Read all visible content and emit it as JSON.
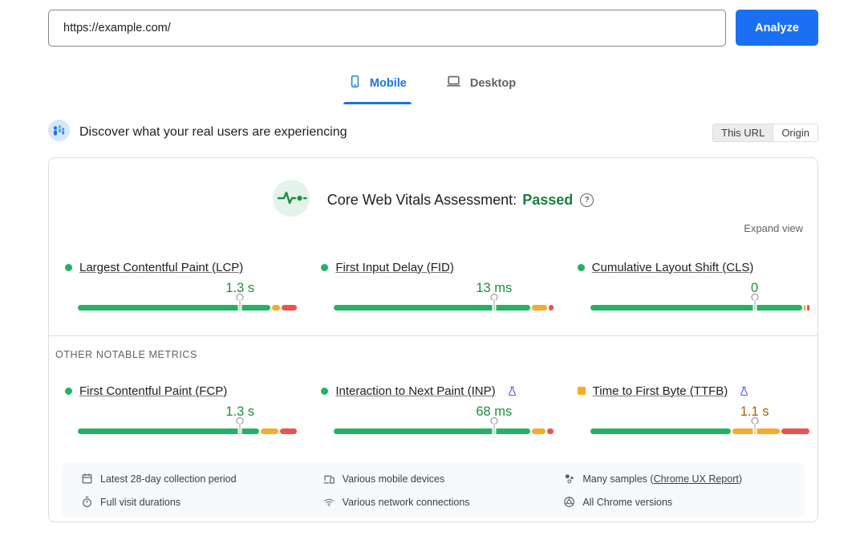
{
  "colors": {
    "accent_blue": "#1a73e8",
    "analyze_blue": "#1a6ff2",
    "good_green": "#23b263",
    "ni_orange": "#f7ab2a",
    "poor_red": "#ee524e",
    "value_green": "#1e8e3e",
    "value_orange": "#b06000",
    "passed_green": "#188038",
    "flask_blue": "#4356e0",
    "icon_gray": "#5f6368"
  },
  "url_bar": {
    "value": "https://example.com/",
    "analyze_button": "Analyze"
  },
  "tabs": [
    {
      "label": "Mobile",
      "active": true,
      "icon": "smartphone-icon"
    },
    {
      "label": "Desktop",
      "active": false,
      "icon": "laptop-icon"
    }
  ],
  "field_data_header": {
    "title": "Discover what your real users are experiencing",
    "scope_toggle": [
      {
        "label": "This URL",
        "selected": true
      },
      {
        "label": "Origin",
        "selected": false
      }
    ]
  },
  "assessment": {
    "title": "Core Web Vitals Assessment:",
    "status": "Passed",
    "help_glyph": "?",
    "expand_label": "Expand view"
  },
  "other_metrics_label": "OTHER NOTABLE METRICS",
  "core_web_vitals": [
    {
      "name": "Largest Contentful Paint (LCP)",
      "value": "1.3 s",
      "rating": "good",
      "marker_percent": 74,
      "distribution": {
        "good": 89,
        "needs_improvement": 4,
        "poor": 7
      },
      "experimental": false
    },
    {
      "name": "First Input Delay (FID)",
      "value": "13 ms",
      "rating": "good",
      "marker_percent": 73,
      "distribution": {
        "good": 91,
        "needs_improvement": 7,
        "poor": 2
      },
      "experimental": false
    },
    {
      "name": "Cumulative Layout Shift (CLS)",
      "value": "0",
      "rating": "good",
      "marker_percent": 75,
      "distribution": {
        "good": 98,
        "needs_improvement": 1,
        "poor": 1
      },
      "experimental": false
    }
  ],
  "other_metrics": [
    {
      "name": "First Contentful Paint (FCP)",
      "value": "1.3 s",
      "rating": "good",
      "marker_percent": 74,
      "distribution": {
        "good": 84,
        "needs_improvement": 8,
        "poor": 8
      },
      "experimental": false
    },
    {
      "name": "Interaction to Next Paint (INP)",
      "value": "68 ms",
      "rating": "good",
      "marker_percent": 73,
      "distribution": {
        "good": 91,
        "needs_improvement": 6,
        "poor": 3
      },
      "experimental": true
    },
    {
      "name": "Time to First Byte (TTFB)",
      "value": "1.1 s",
      "rating": "needs_improvement",
      "marker_percent": 75,
      "distribution": {
        "good": 65,
        "needs_improvement": 22,
        "poor": 13
      },
      "experimental": true
    }
  ],
  "collection_info": {
    "columns": [
      [
        {
          "icon": "calendar-icon",
          "text": "Latest 28-day collection period"
        },
        {
          "icon": "stopwatch-icon",
          "text": "Full visit durations"
        }
      ],
      [
        {
          "icon": "devices-icon",
          "text": "Various mobile devices"
        },
        {
          "icon": "network-icon",
          "text": "Various network connections"
        }
      ],
      [
        {
          "icon": "samples-icon",
          "text_before": "Many samples (",
          "link": "Chrome UX Report",
          "text_after": ")"
        },
        {
          "icon": "chrome-icon",
          "text": "All Chrome versions"
        }
      ]
    ]
  }
}
